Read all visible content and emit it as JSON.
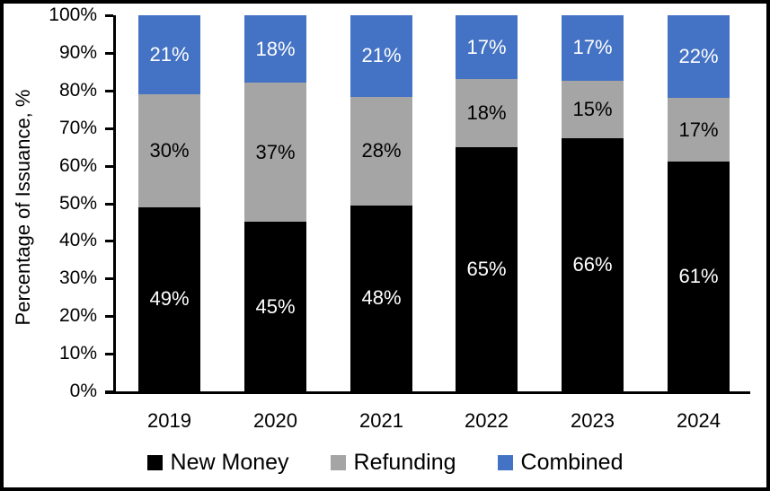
{
  "chart_data": {
    "type": "bar",
    "subtype": "stacked-100",
    "title": "",
    "ylabel": "Percentage of Issuance, %",
    "xlabel": "",
    "categories": [
      "2019",
      "2020",
      "2021",
      "2022",
      "2023",
      "2024"
    ],
    "series": [
      {
        "name": "New Money",
        "color": "#000000",
        "label_color": "#FFFFFF",
        "values": [
          49,
          45,
          48,
          65,
          66,
          61
        ]
      },
      {
        "name": "Refunding",
        "color": "#A5A5A5",
        "label_color": "#000000",
        "values": [
          30,
          37,
          28,
          18,
          15,
          17
        ]
      },
      {
        "name": "Combined",
        "color": "#4472C4",
        "label_color": "#FFFFFF",
        "values": [
          21,
          18,
          21,
          17,
          17,
          22
        ]
      }
    ],
    "value_suffix": "%",
    "yticks": [
      "0%",
      "10%",
      "20%",
      "30%",
      "40%",
      "50%",
      "60%",
      "70%",
      "80%",
      "90%",
      "100%"
    ],
    "ylim": [
      0,
      100
    ],
    "grid": "off",
    "legend_position": "bottom",
    "colors": {
      "axis": "#000000",
      "background": "#FFFFFF",
      "border": "#000000"
    }
  }
}
